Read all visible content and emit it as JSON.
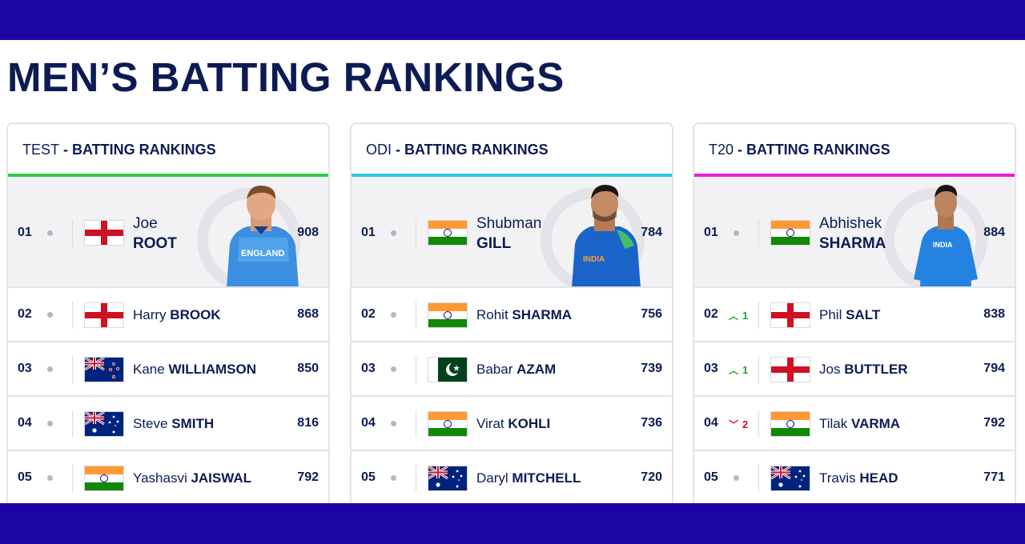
{
  "page": {
    "title": "MEN’S BATTING RANKINGS"
  },
  "colors": {
    "banner": "#1c06a3",
    "text": "#0d1b54",
    "test_accent": "#2ecc40",
    "odi_accent": "#2cc8d8",
    "t20_accent": "#ec1fd7",
    "up": "#1fa32e",
    "down": "#d6102a"
  },
  "panels": [
    {
      "format": "TEST",
      "separator": " - ",
      "title": "BATTING RANKINGS",
      "rows": [
        {
          "rank": "01",
          "flag": "england-flag",
          "first": "Joe",
          "last": "ROOT",
          "rating": "908"
        },
        {
          "rank": "02",
          "flag": "england-flag",
          "first": "Harry",
          "last": "BROOK",
          "rating": "868"
        },
        {
          "rank": "03",
          "flag": "new-zealand-flag",
          "first": "Kane",
          "last": "WILLIAMSON",
          "rating": "850"
        },
        {
          "rank": "04",
          "flag": "australia-flag",
          "first": "Steve",
          "last": "SMITH",
          "rating": "816"
        },
        {
          "rank": "05",
          "flag": "india-flag",
          "first": "Yashasvi",
          "last": "JAISWAL",
          "rating": "792"
        }
      ]
    },
    {
      "format": "ODI",
      "separator": " - ",
      "title": "BATTING RANKINGS",
      "rows": [
        {
          "rank": "01",
          "flag": "india-flag",
          "first": "Shubman",
          "last": "GILL",
          "rating": "784"
        },
        {
          "rank": "02",
          "flag": "india-flag",
          "first": "Rohit",
          "last": "SHARMA",
          "rating": "756"
        },
        {
          "rank": "03",
          "flag": "pakistan-flag",
          "first": "Babar",
          "last": "AZAM",
          "rating": "739"
        },
        {
          "rank": "04",
          "flag": "india-flag",
          "first": "Virat",
          "last": "KOHLI",
          "rating": "736"
        },
        {
          "rank": "05",
          "flag": "australia-flag",
          "first": "Daryl",
          "last": "MITCHELL",
          "rating": "720"
        }
      ]
    },
    {
      "format": "T20",
      "separator": " - ",
      "title": "BATTING RANKINGS",
      "rows": [
        {
          "rank": "01",
          "flag": "india-flag",
          "first": "Abhishek",
          "last": "SHARMA",
          "rating": "884"
        },
        {
          "rank": "02",
          "flag": "england-flag",
          "first": "Phil",
          "last": "SALT",
          "rating": "838",
          "move": "1",
          "move_dir": "up"
        },
        {
          "rank": "03",
          "flag": "england-flag",
          "first": "Jos",
          "last": "BUTTLER",
          "rating": "794",
          "move": "1",
          "move_dir": "up"
        },
        {
          "rank": "04",
          "flag": "india-flag",
          "first": "Tilak",
          "last": "VARMA",
          "rating": "792",
          "move": "2",
          "move_dir": "down"
        },
        {
          "rank": "05",
          "flag": "australia-flag",
          "first": "Travis",
          "last": "HEAD",
          "rating": "771"
        }
      ]
    }
  ]
}
